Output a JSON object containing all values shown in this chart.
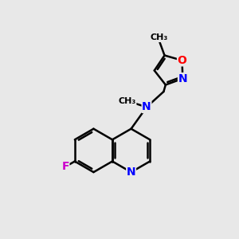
{
  "background_color": "#e8e8e8",
  "bond_color": "#000000",
  "atom_colors": {
    "N": "#0000ff",
    "O": "#ff0000",
    "F": "#cc00cc",
    "C": "#000000"
  },
  "figsize": [
    3.0,
    3.0
  ],
  "dpi": 100
}
